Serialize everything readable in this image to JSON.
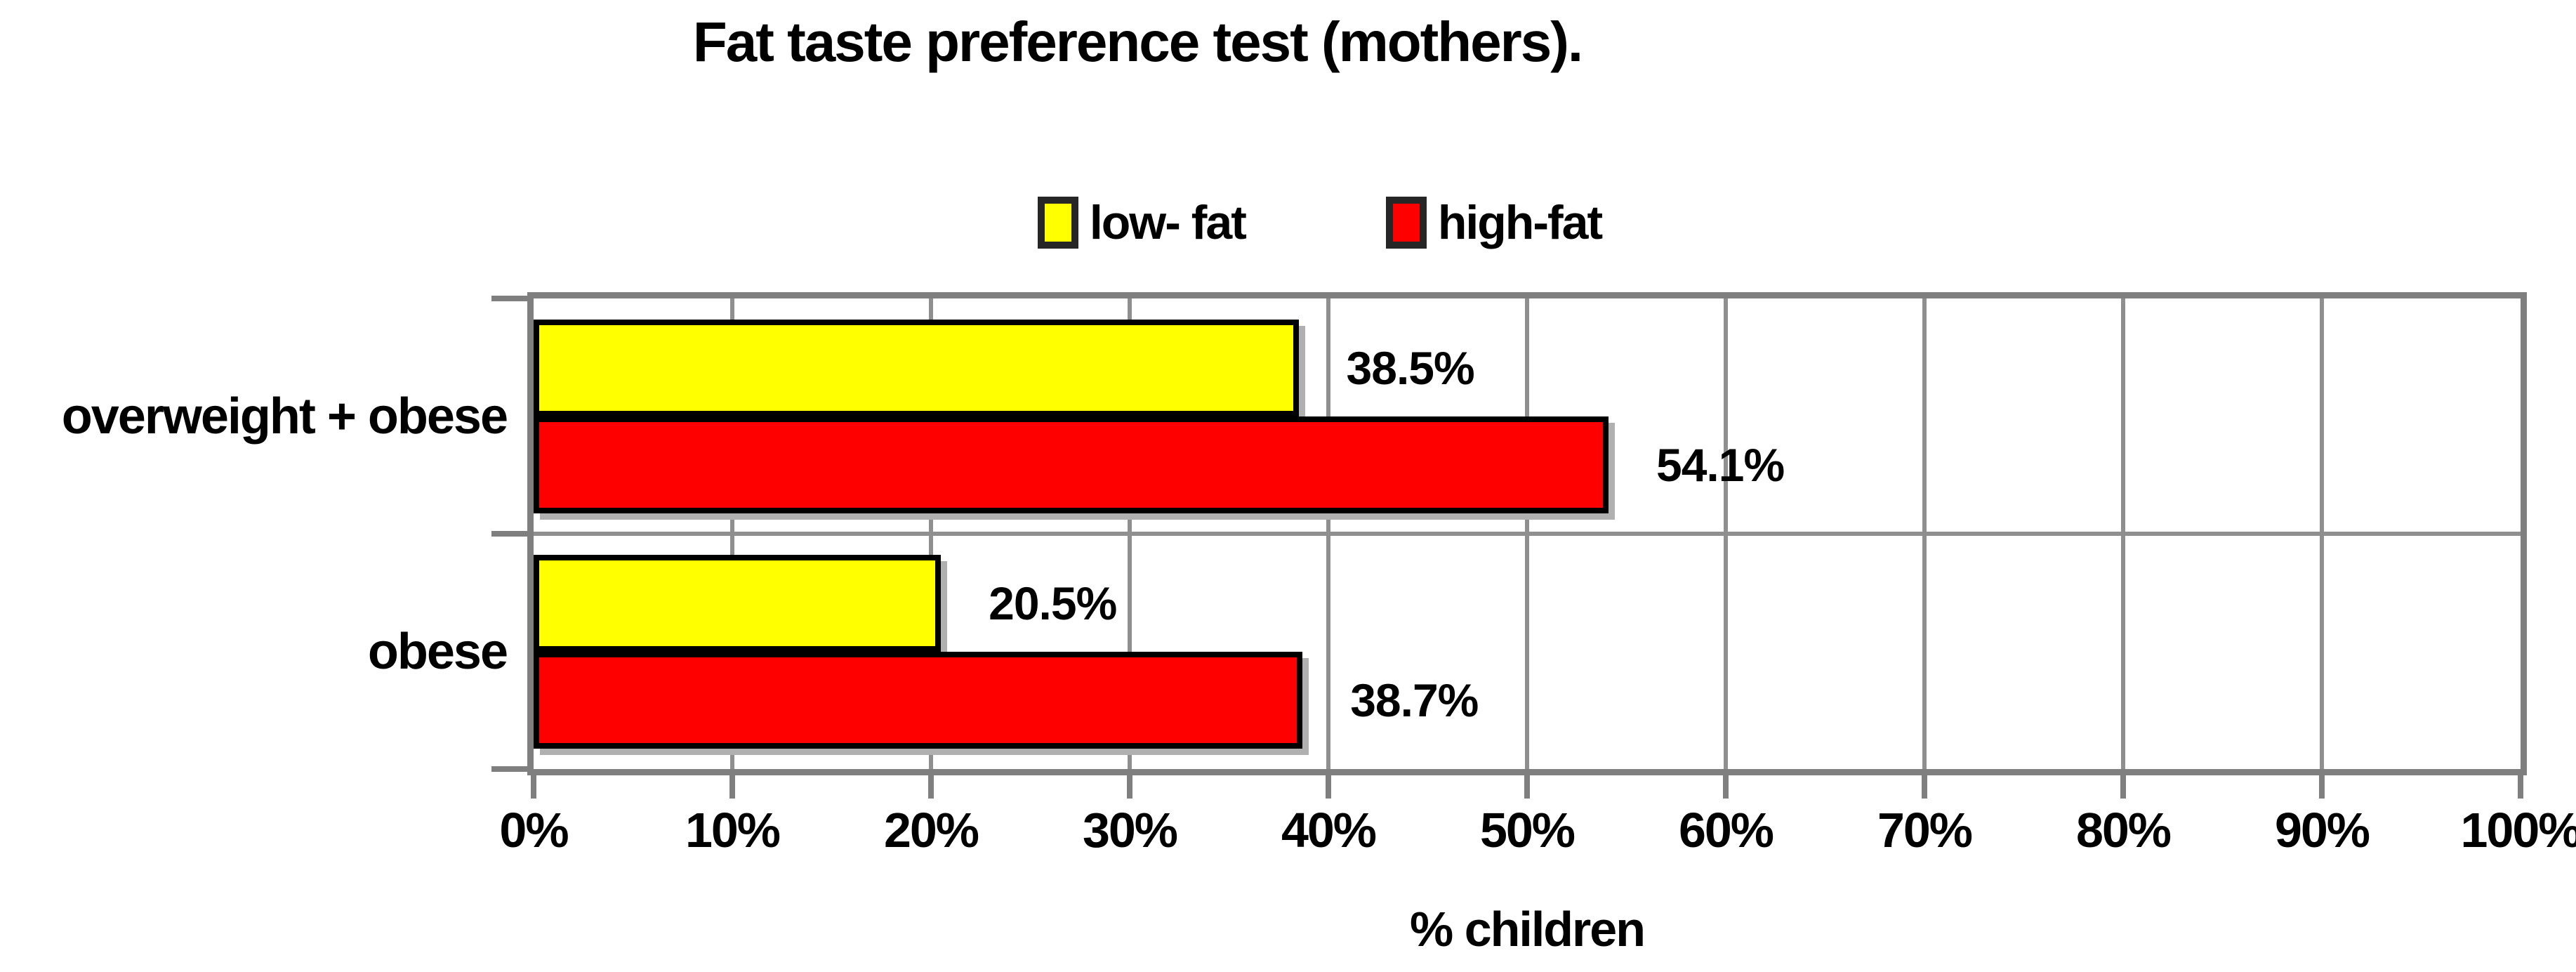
{
  "chart_data": {
    "type": "bar",
    "orientation": "horizontal",
    "title": "Fat taste preference test (mothers).",
    "xlabel": "% children",
    "ylabel": "",
    "categories": [
      "overweight + obese",
      "obese"
    ],
    "series": [
      {
        "name": "low- fat",
        "color": "#ffff00",
        "values": [
          38.5,
          20.5
        ]
      },
      {
        "name": "high-fat",
        "color": "#ff0000",
        "values": [
          54.1,
          38.7
        ]
      }
    ],
    "data_labels": [
      [
        "38.5%",
        "20.5%"
      ],
      [
        "54.1%",
        "38.7%"
      ]
    ],
    "x_ticks": [
      "0%",
      "10%",
      "20%",
      "30%",
      "40%",
      "50%",
      "60%",
      "70%",
      "80%",
      "90%",
      "100%"
    ],
    "xlim": [
      0,
      100
    ],
    "grid": "vertical gridlines every 10%, horizontal gridline at category boundary",
    "legend_position": "top-center"
  },
  "style": {
    "bar_border_color": "#000000",
    "plot_border_color": "#7f7f7f",
    "gridline_color": "#8f8f8f",
    "tick_color": "#7f7f7f",
    "shadow_color": "#b0b0b0",
    "legend_swatch_border": "#262626",
    "text_color": "#000000",
    "background": "#ffffff"
  }
}
